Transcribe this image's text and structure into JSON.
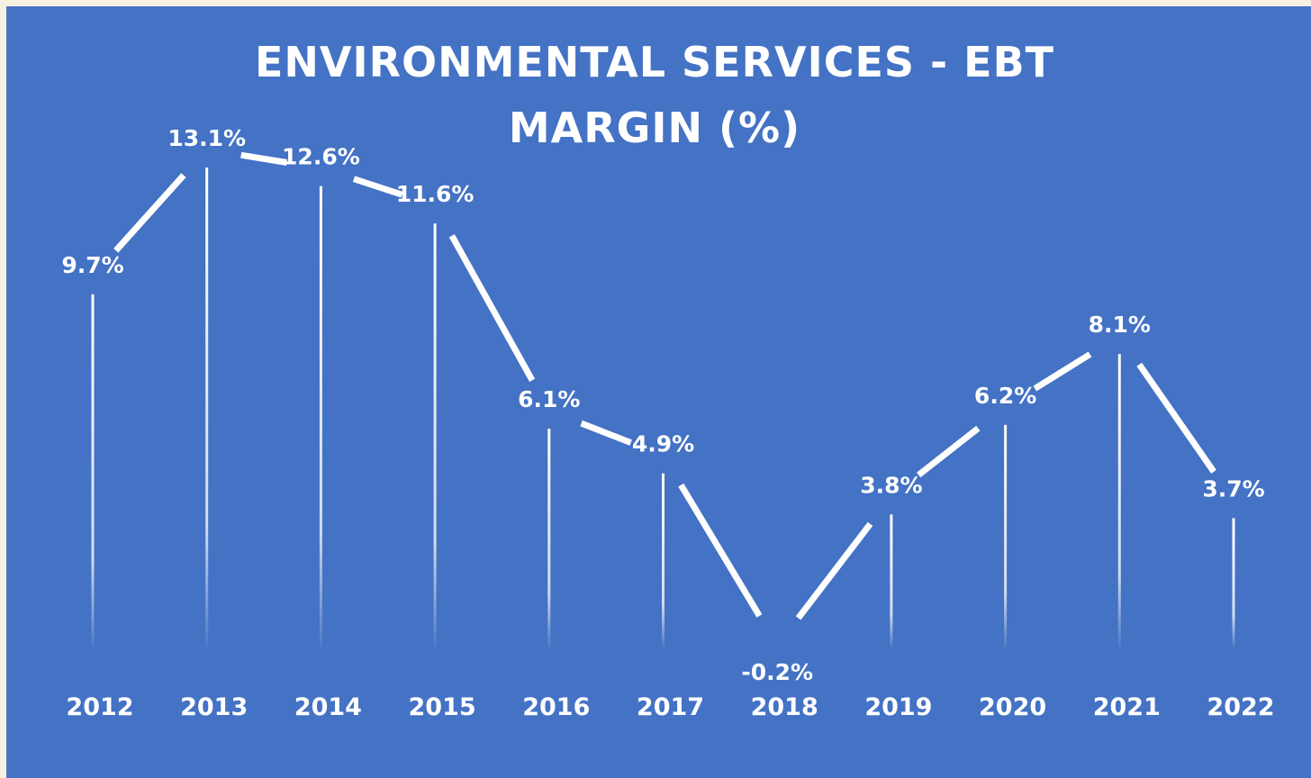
{
  "chart_data": {
    "type": "line",
    "title_lines": [
      "ENVIRONMENTAL SERVICES - EBT",
      "MARGIN (%)"
    ],
    "categories": [
      "2012",
      "2013",
      "2014",
      "2015",
      "2016",
      "2017",
      "2018",
      "2019",
      "2020",
      "2021",
      "2022"
    ],
    "series": [
      {
        "values": [
          9.7,
          13.1,
          12.6,
          11.6,
          6.1,
          4.9,
          -0.2,
          3.8,
          6.2,
          8.1,
          3.7
        ],
        "labels": [
          "9.7%",
          "13.1%",
          "12.6%",
          "11.6%",
          "6.1%",
          "4.9%",
          "-0.2%",
          "3.8%",
          "6.2%",
          "8.1%",
          "3.7%"
        ]
      }
    ],
    "ylim": [
      -0.2,
      13.1
    ],
    "grid": false,
    "drop_lines": true,
    "colors": {
      "background": "#4472c4",
      "line": "#ffffff",
      "text": "#ffffff",
      "page": "#f6f0e1"
    }
  }
}
